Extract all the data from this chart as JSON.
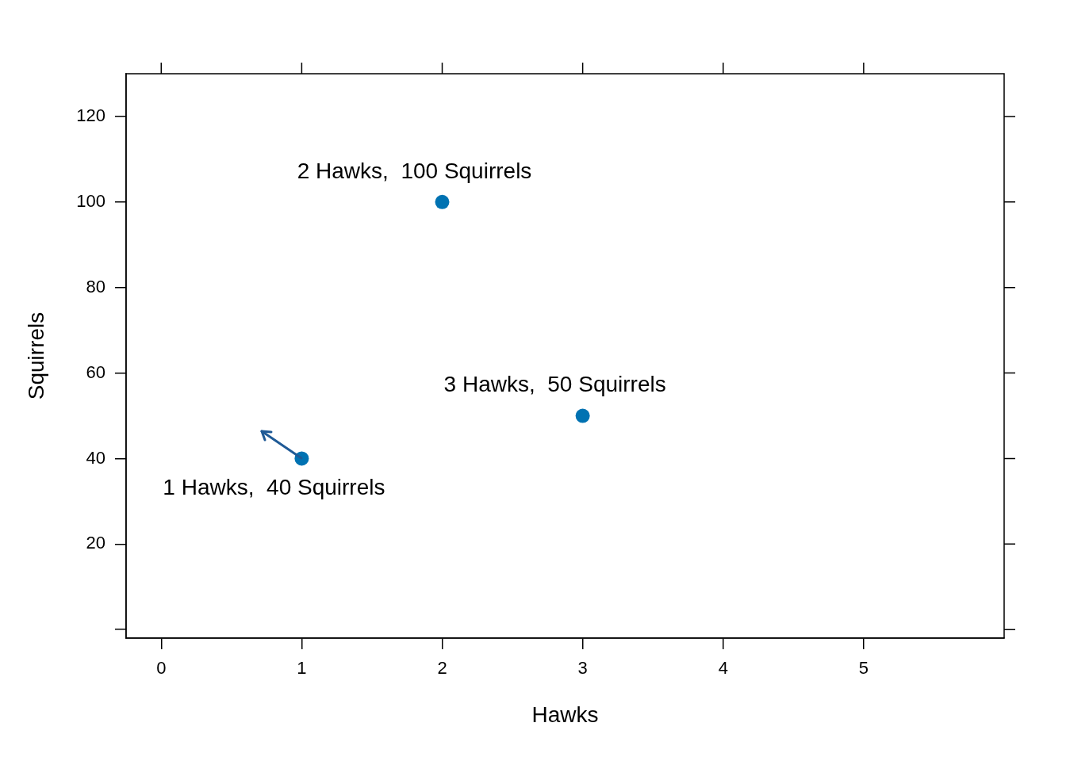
{
  "chart_data": {
    "type": "scatter",
    "xlabel": "Hawks",
    "ylabel": "Squirrels",
    "x": [
      1,
      2,
      3
    ],
    "series": [
      {
        "color": "#0072b2",
        "values": [
          40,
          100,
          50
        ]
      }
    ],
    "xlim": [
      -0.25,
      6
    ],
    "xticks": [
      0,
      1,
      2,
      3,
      4,
      5
    ],
    "ylim": [
      -2,
      130
    ],
    "yticks": [
      {
        "value": 0,
        "label": null
      },
      20,
      40,
      60,
      80,
      100,
      120
    ],
    "marker": "circle",
    "grid": false,
    "legend": false,
    "annotations": [
      {
        "text": "1 Hawks,  40 Squirrels",
        "x": 1,
        "y": 40
      },
      {
        "text": "2 Hawks,  100 Squirrels",
        "x": 2,
        "y": 100
      },
      {
        "text": "3 Hawks,  50 Squirrels",
        "x": 3,
        "y": 50
      }
    ]
  }
}
